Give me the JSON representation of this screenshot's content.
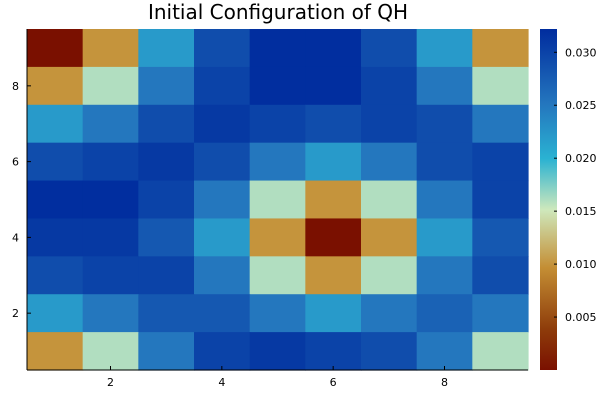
{
  "chart_data": {
    "type": "heatmap",
    "title": "Initial Configuration of QH",
    "xlabel": "",
    "ylabel": "",
    "x_ticks": [
      "2",
      "4",
      "6",
      "8"
    ],
    "y_ticks": [
      "2",
      "4",
      "6",
      "8"
    ],
    "x_range": [
      0.5,
      9.5
    ],
    "y_range": [
      0.5,
      9.5
    ],
    "colorbar": {
      "min": 0.0,
      "max": 0.0322,
      "ticks": [
        "0.005",
        "0.010",
        "0.015",
        "0.020",
        "0.025",
        "0.030"
      ],
      "colormap": "RdYlBu-like (dark red → tan → pale yellow-green → cyan → dark blue)"
    },
    "grid": false,
    "rows_top_to_bottom": [
      [
        0.0,
        0.01,
        0.022,
        0.029,
        0.032,
        0.032,
        0.029,
        0.022,
        0.01
      ],
      [
        0.01,
        0.016,
        0.025,
        0.03,
        0.032,
        0.032,
        0.03,
        0.025,
        0.016
      ],
      [
        0.022,
        0.025,
        0.029,
        0.031,
        0.03,
        0.029,
        0.03,
        0.029,
        0.025
      ],
      [
        0.029,
        0.03,
        0.031,
        0.029,
        0.025,
        0.022,
        0.025,
        0.029,
        0.03
      ],
      [
        0.032,
        0.032,
        0.03,
        0.025,
        0.016,
        0.01,
        0.016,
        0.025,
        0.03
      ],
      [
        0.031,
        0.031,
        0.028,
        0.022,
        0.01,
        0.0,
        0.01,
        0.022,
        0.028
      ],
      [
        0.029,
        0.03,
        0.03,
        0.025,
        0.016,
        0.01,
        0.016,
        0.025,
        0.029
      ],
      [
        0.022,
        0.025,
        0.028,
        0.028,
        0.025,
        0.022,
        0.025,
        0.027,
        0.025
      ],
      [
        0.01,
        0.016,
        0.025,
        0.03,
        0.031,
        0.03,
        0.029,
        0.025,
        0.016
      ]
    ]
  }
}
